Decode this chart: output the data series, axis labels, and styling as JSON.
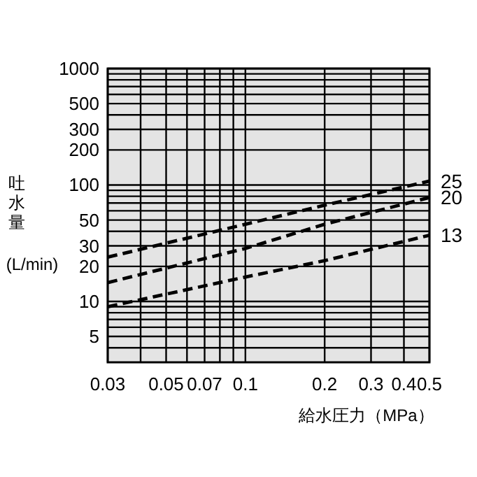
{
  "chart_data": {
    "type": "line",
    "xlabel": "給水圧力（MPa）",
    "ylabel": "吐水量(L/min)",
    "log": "xy",
    "grid": true,
    "legend": false,
    "line_style": "dashed",
    "marker": "none",
    "x": [
      0.03,
      0.1,
      0.2,
      0.5
    ],
    "xlim": [
      0.03,
      0.5
    ],
    "xticks": [
      0.03,
      {
        "value": 0.04,
        "label": null
      },
      0.05,
      {
        "value": 0.06,
        "label": null
      },
      0.07,
      {
        "value": 0.08,
        "label": null
      },
      {
        "value": 0.09,
        "label": null
      },
      0.1,
      0.2,
      0.3,
      0.4,
      0.5
    ],
    "ylim": [
      3,
      1000
    ],
    "yticks": [
      {
        "value": 4,
        "label": null
      },
      5,
      {
        "value": 6,
        "label": null
      },
      {
        "value": 7,
        "label": null
      },
      {
        "value": 8,
        "label": null
      },
      {
        "value": 9,
        "label": null
      },
      10,
      20,
      30,
      {
        "value": 40,
        "label": null
      },
      50,
      {
        "value": 60,
        "label": null
      },
      {
        "value": 70,
        "label": null
      },
      {
        "value": 80,
        "label": null
      },
      {
        "value": 90,
        "label": null
      },
      100,
      200,
      300,
      {
        "value": 400,
        "label": null
      },
      500,
      {
        "value": 600,
        "label": null
      },
      {
        "value": 700,
        "label": null
      },
      {
        "value": 800,
        "label": null
      },
      {
        "value": 900,
        "label": null
      },
      1000
    ],
    "series": [
      {
        "name": "25",
        "color": "#000000",
        "values": [
          24,
          46,
          67,
          108
        ]
      },
      {
        "name": "20",
        "color": "#000000",
        "values": [
          14.5,
          28.5,
          46,
          78
        ]
      },
      {
        "name": "13",
        "color": "#000000",
        "values": [
          9,
          16.2,
          22.4,
          37
        ]
      }
    ]
  }
}
